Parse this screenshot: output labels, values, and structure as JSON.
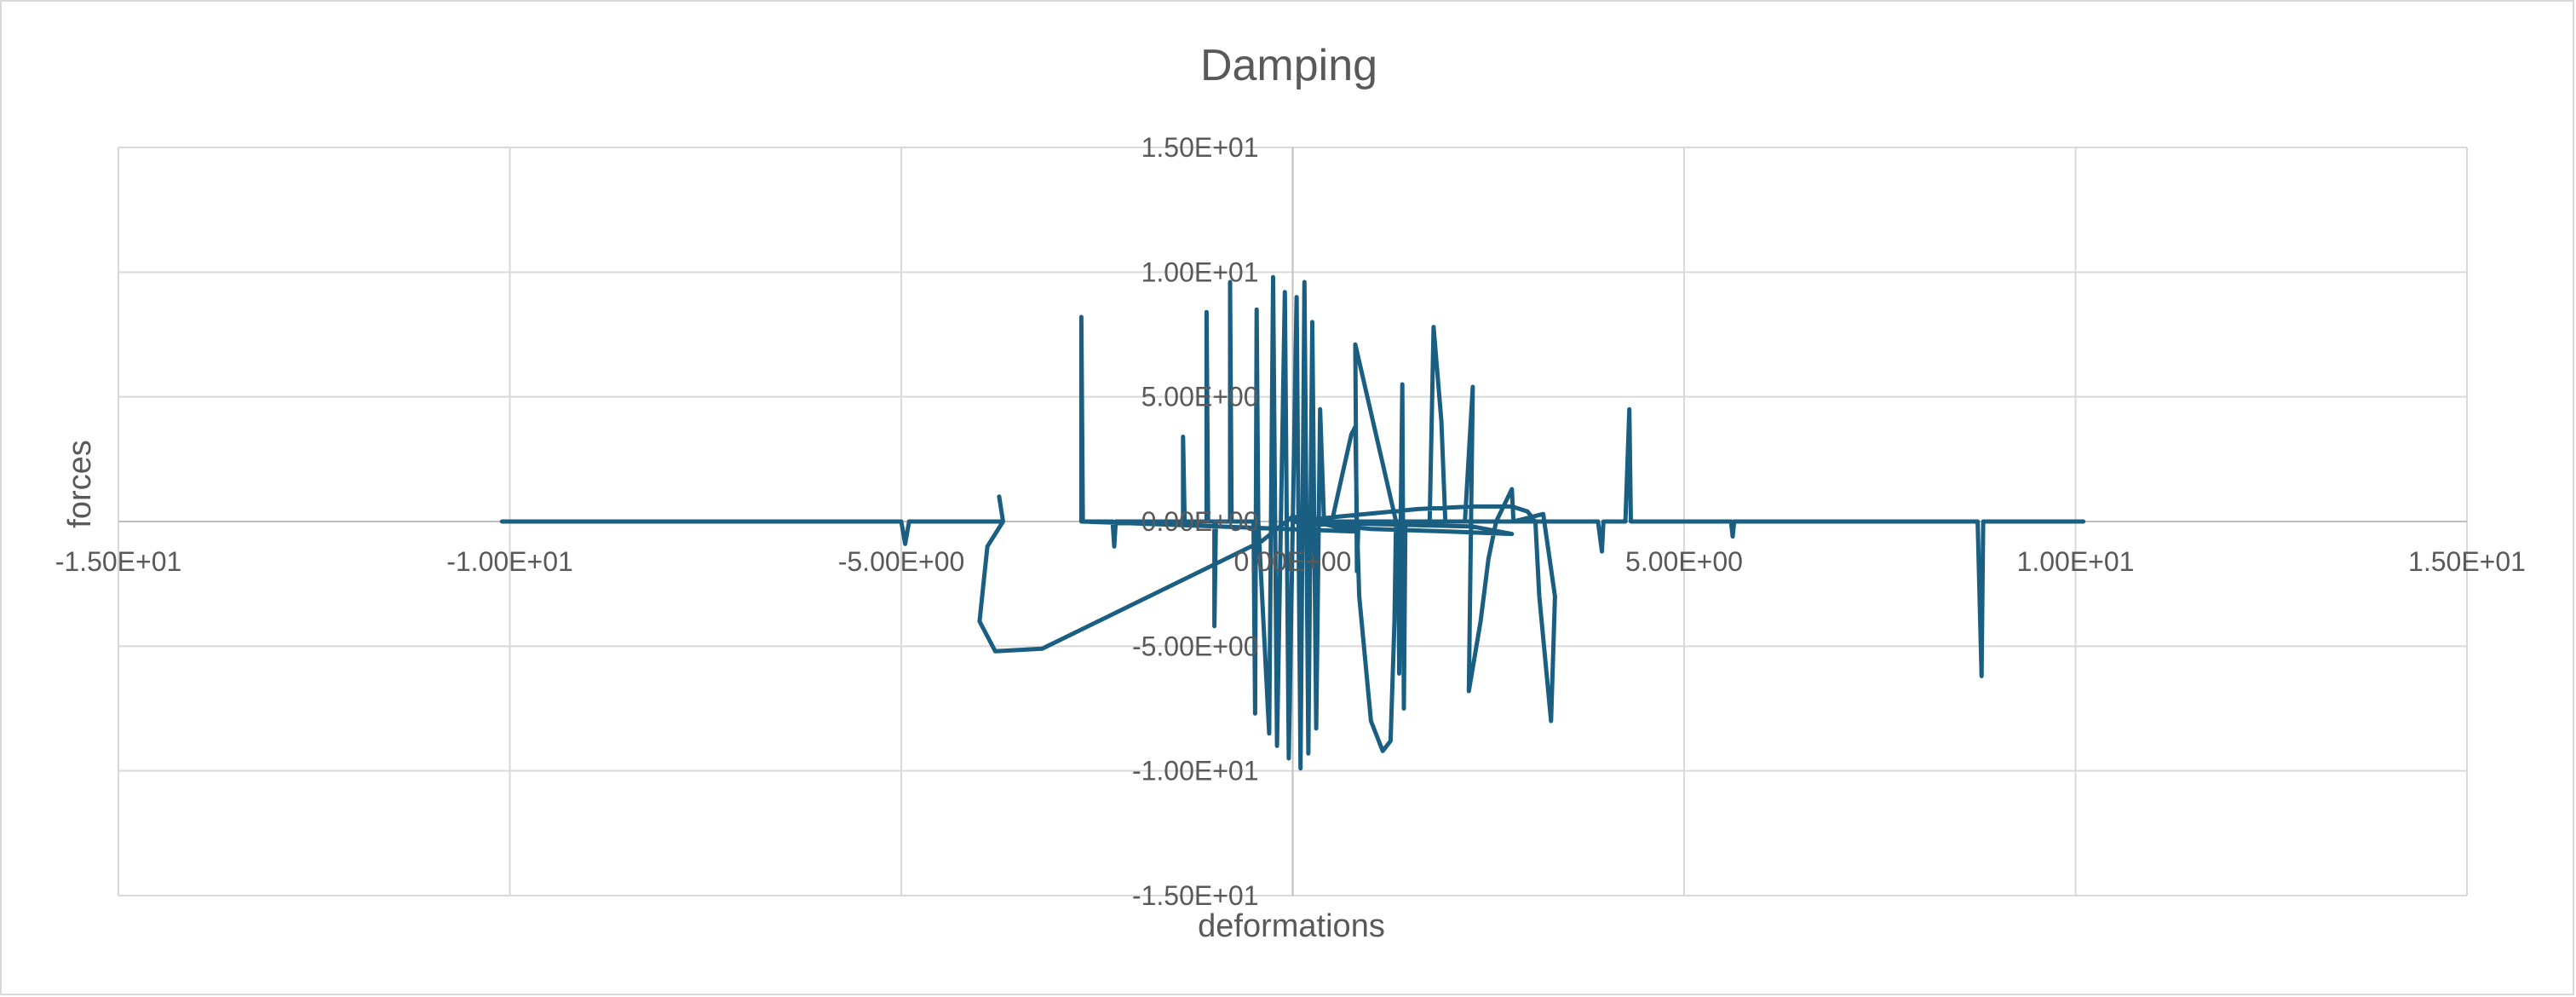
{
  "chart_data": {
    "type": "scatter",
    "title": "Damping",
    "xlabel": "deformations",
    "ylabel": "forces",
    "xlim": [
      -15,
      15
    ],
    "ylim": [
      -15,
      15
    ],
    "xticks": [
      -15,
      -10,
      -5,
      0,
      5,
      10,
      15
    ],
    "yticks": [
      -15,
      -10,
      -5,
      0,
      5,
      10,
      15
    ],
    "xtick_labels": [
      "-1.50E+01",
      "-1.00E+01",
      "-5.00E+00",
      "0.00E+00",
      "5.00E+00",
      "1.00E+01",
      "1.50E+01"
    ],
    "ytick_labels": [
      "-1.50E+01",
      "-1.00E+01",
      "-5.00E+00",
      "0.00E+00",
      "5.00E+00",
      "1.00E+01",
      "1.50E+01"
    ],
    "grid": true,
    "legend": "none",
    "line_color": "#1a5f82",
    "series": [
      {
        "values": [
          [
            -10.1,
            0
          ],
          [
            -7.5,
            0
          ],
          [
            -5.0,
            0
          ],
          [
            -4.95,
            -0.9
          ],
          [
            -4.9,
            0
          ],
          [
            -3.7,
            0
          ],
          [
            -3.75,
            1.0
          ],
          [
            -3.7,
            0
          ],
          [
            -3.9,
            -1.0
          ],
          [
            -4.0,
            -4.0
          ],
          [
            -3.8,
            -5.2
          ],
          [
            -3.2,
            -5.1
          ],
          [
            -0.4,
            -0.8
          ],
          [
            0,
            0.2
          ],
          [
            0.8,
            -0.4
          ],
          [
            -2.7,
            0
          ],
          [
            -2.7,
            8.2
          ],
          [
            -2.68,
            0
          ],
          [
            -2.3,
            0
          ],
          [
            -2.28,
            -1.0
          ],
          [
            -2.26,
            0
          ],
          [
            -1.4,
            0
          ],
          [
            -1.4,
            3.4
          ],
          [
            -1.38,
            0
          ],
          [
            -1.1,
            0
          ],
          [
            -1.1,
            8.4
          ],
          [
            -1.08,
            0
          ],
          [
            -1.0,
            0
          ],
          [
            -1.0,
            -4.2
          ],
          [
            -0.98,
            0
          ],
          [
            -0.8,
            0
          ],
          [
            -0.8,
            9.6
          ],
          [
            -0.78,
            0
          ],
          [
            -0.5,
            0
          ],
          [
            -0.48,
            -7.7
          ],
          [
            -0.46,
            8.5
          ],
          [
            -0.44,
            0
          ],
          [
            -0.3,
            -8.5
          ],
          [
            -0.25,
            9.8
          ],
          [
            -0.2,
            -9.0
          ],
          [
            -0.1,
            9.2
          ],
          [
            -0.05,
            -9.5
          ],
          [
            0.05,
            9.0
          ],
          [
            0.1,
            -9.9
          ],
          [
            0.15,
            9.6
          ],
          [
            0.2,
            -9.3
          ],
          [
            0.25,
            8.0
          ],
          [
            0.3,
            -8.3
          ],
          [
            0.35,
            4.5
          ],
          [
            0.4,
            0
          ],
          [
            0.5,
            0
          ],
          [
            0.6,
            1.4
          ],
          [
            0.75,
            3.5
          ],
          [
            0.8,
            3.8
          ],
          [
            0.82,
            0
          ],
          [
            0.85,
            -3.0
          ],
          [
            1.0,
            -8.0
          ],
          [
            1.15,
            -9.2
          ],
          [
            1.25,
            -8.8
          ],
          [
            1.3,
            -4.0
          ],
          [
            1.32,
            0
          ],
          [
            0.8,
            7.1
          ],
          [
            0.82,
            -2.0
          ],
          [
            0.84,
            0
          ],
          [
            1.35,
            0
          ],
          [
            1.36,
            -6.1
          ],
          [
            1.38,
            0
          ],
          [
            1.4,
            5.5
          ],
          [
            1.42,
            -7.5
          ],
          [
            1.44,
            0
          ],
          [
            1.5,
            0
          ],
          [
            1.75,
            0
          ],
          [
            1.8,
            7.8
          ],
          [
            1.9,
            4.0
          ],
          [
            1.95,
            0
          ],
          [
            2.2,
            0
          ],
          [
            2.3,
            5.4
          ],
          [
            2.25,
            -6.8
          ],
          [
            2.4,
            -4.0
          ],
          [
            2.5,
            -1.5
          ],
          [
            2.6,
            0
          ],
          [
            2.8,
            1.3
          ],
          [
            2.82,
            0
          ],
          [
            3.2,
            0.3
          ],
          [
            3.35,
            -3.0
          ],
          [
            3.3,
            -8.0
          ],
          [
            3.15,
            -3.0
          ],
          [
            3.1,
            0
          ],
          [
            3.0,
            0.4
          ],
          [
            2.8,
            0.6
          ],
          [
            2.3,
            0.6
          ],
          [
            1.6,
            0.5
          ],
          [
            0.6,
            0.2
          ],
          [
            0,
            0
          ],
          [
            1.0,
            -0.1
          ],
          [
            2.3,
            -0.2
          ],
          [
            2.8,
            -0.5
          ],
          [
            2.0,
            -0.4
          ],
          [
            1.0,
            -0.3
          ],
          [
            0,
            0
          ],
          [
            3.9,
            0
          ],
          [
            3.95,
            -1.2
          ],
          [
            3.97,
            0
          ],
          [
            4.25,
            0
          ],
          [
            4.3,
            4.5
          ],
          [
            4.32,
            0
          ],
          [
            5.6,
            0
          ],
          [
            5.62,
            -0.6
          ],
          [
            5.64,
            0
          ],
          [
            8.7,
            0
          ],
          [
            8.75,
            0
          ],
          [
            8.8,
            -6.2
          ],
          [
            8.82,
            0
          ],
          [
            10.1,
            0
          ]
        ]
      }
    ]
  }
}
